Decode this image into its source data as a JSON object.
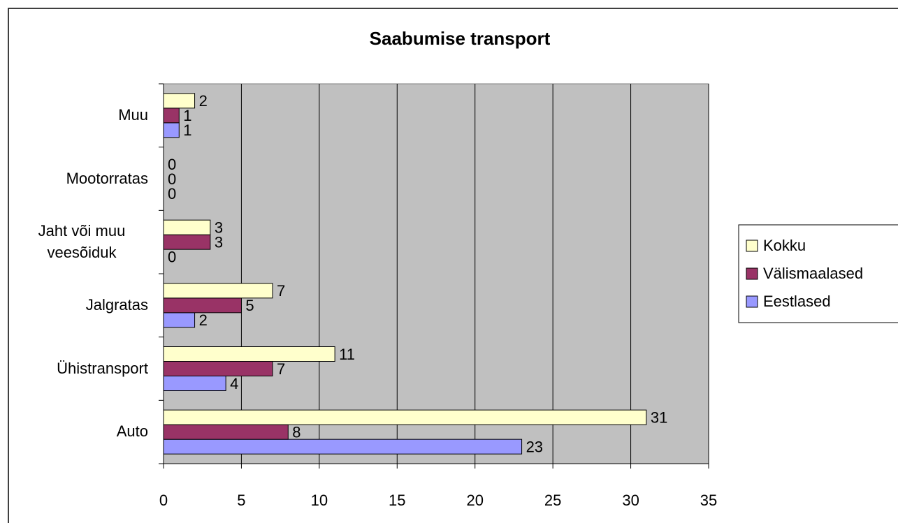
{
  "chart_data": {
    "type": "barh",
    "title": "Saabumise transport",
    "categories": [
      "Auto",
      "Ühistransport",
      "Jalgratas",
      "Jaht või muu veesõiduk",
      "Mootorratas",
      "Muu"
    ],
    "series": [
      {
        "name": "Eestlased",
        "color": "#9999ff",
        "values": [
          23,
          4,
          2,
          0,
          0,
          1
        ]
      },
      {
        "name": "Välismaalased",
        "color": "#993366",
        "values": [
          8,
          7,
          5,
          3,
          0,
          1
        ]
      },
      {
        "name": "Kokku",
        "color": "#ffffcc",
        "values": [
          31,
          11,
          7,
          3,
          0,
          2
        ]
      }
    ],
    "xlim": [
      0,
      35
    ],
    "xticks": [
      0,
      5,
      10,
      15,
      20,
      25,
      30,
      35
    ],
    "grid": true,
    "legend": "right"
  }
}
